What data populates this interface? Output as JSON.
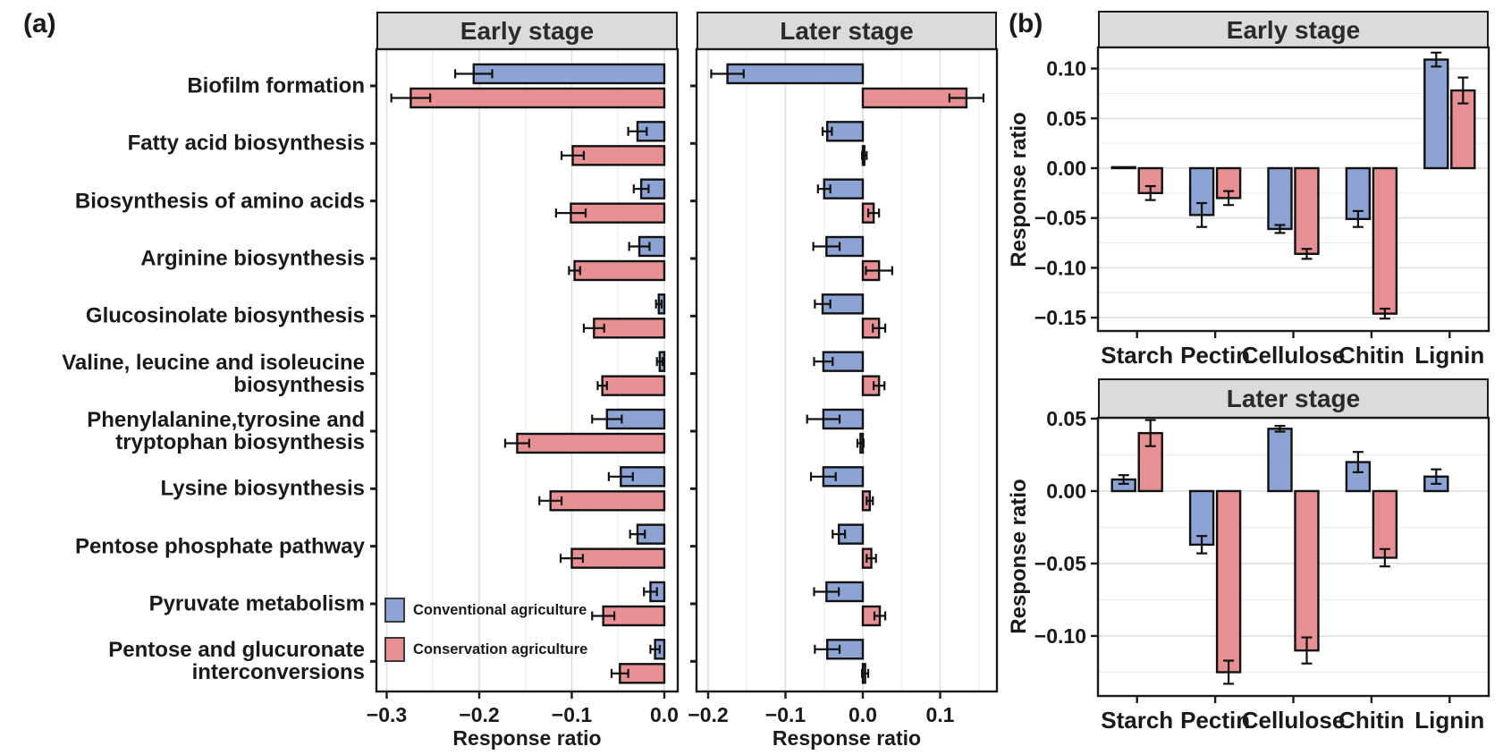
{
  "figure": {
    "panel_a_label": "(a)",
    "panel_b_label": "(b)",
    "colors": {
      "conventional": "#8CA3D4",
      "conservation": "#E69093",
      "bar_outline": "#111111",
      "header_bg": "#DBDBDB",
      "grid_major": "#E2E2E2",
      "grid_minor": "#EDEDED",
      "text": "#1a1a1a"
    },
    "legend": {
      "items": [
        {
          "label": "Conventional agriculture",
          "color_key": "conventional"
        },
        {
          "label": "Conservation agriculture",
          "color_key": "conservation"
        }
      ]
    }
  },
  "chart_data": [
    {
      "id": "a-early",
      "type": "bar",
      "orientation": "horizontal",
      "title": "Early stage",
      "xlabel": "Response ratio",
      "xlim": [
        -0.3111,
        0.0145
      ],
      "xticks": [
        -0.3,
        -0.2,
        -0.1,
        0.0
      ],
      "xtick_labels": [
        "−0.3",
        "−0.2",
        "−0.1",
        "0.0"
      ],
      "grid": true,
      "legend_position": "inside bottom-left",
      "categories": [
        "Biofilm formation",
        "Fatty acid biosynthesis",
        "Biosynthesis of amino acids",
        "Arginine biosynthesis",
        "Glucosinolate biosynthesis",
        "Valine, leucine and isoleucine\nbiosynthesis",
        "Phenylalanine,tyrosine and\ntryptophan biosynthesis",
        "Lysine biosynthesis",
        "Pentose phosphate pathway",
        "Pyruvate metabolism",
        "Pentose and glucuronate\ninterconversions"
      ],
      "series": [
        {
          "name": "Conventional agriculture",
          "color_key": "conventional",
          "values": [
            -0.206,
            -0.029,
            -0.025,
            -0.027,
            -0.006,
            -0.005,
            -0.062,
            -0.047,
            -0.029,
            -0.015,
            -0.01
          ],
          "errors": [
            0.02,
            0.01,
            0.008,
            0.011,
            0.003,
            0.003,
            0.016,
            0.013,
            0.008,
            0.007,
            0.005
          ]
        },
        {
          "name": "Conservation agriculture",
          "color_key": "conservation",
          "values": [
            -0.274,
            -0.099,
            -0.101,
            -0.097,
            -0.076,
            -0.067,
            -0.159,
            -0.123,
            -0.1,
            -0.066,
            -0.048
          ],
          "errors": [
            0.021,
            0.012,
            0.016,
            0.006,
            0.011,
            0.005,
            0.013,
            0.012,
            0.012,
            0.012,
            0.009
          ]
        }
      ]
    },
    {
      "id": "a-later",
      "type": "bar",
      "orientation": "horizontal",
      "title": "Later stage",
      "xlabel": "Response ratio",
      "xlim": [
        -0.215,
        0.1734
      ],
      "xticks": [
        -0.2,
        -0.1,
        0.0,
        0.1
      ],
      "xtick_labels": [
        "−0.2",
        "−0.1",
        "0.0",
        "0.1"
      ],
      "grid": true,
      "categories": [
        "Biofilm formation",
        "Fatty acid biosynthesis",
        "Biosynthesis of amino acids",
        "Arginine biosynthesis",
        "Glucosinolate biosynthesis",
        "Valine, leucine and isoleucine\nbiosynthesis",
        "Phenylalanine,tyrosine and\ntryptophan biosynthesis",
        "Lysine biosynthesis",
        "Pentose phosphate pathway",
        "Pyruvate metabolism",
        "Pentose and glucuronate\ninterconversions"
      ],
      "series": [
        {
          "name": "Conventional agriculture",
          "color_key": "conventional",
          "values": [
            -0.175,
            -0.046,
            -0.05,
            -0.047,
            -0.052,
            -0.051,
            -0.051,
            -0.051,
            -0.031,
            -0.047,
            -0.046
          ],
          "errors": [
            0.021,
            0.006,
            0.008,
            0.017,
            0.01,
            0.012,
            0.021,
            0.016,
            0.008,
            0.016,
            0.016
          ]
        },
        {
          "name": "Conservation agriculture",
          "color_key": "conservation",
          "values": [
            0.134,
            0.002,
            0.014,
            0.021,
            0.021,
            0.021,
            -0.003,
            0.009,
            0.011,
            0.022,
            0.003
          ],
          "errors": [
            0.022,
            0.003,
            0.007,
            0.017,
            0.008,
            0.007,
            0.004,
            0.004,
            0.006,
            0.007,
            0.004
          ]
        }
      ]
    },
    {
      "id": "b-early",
      "type": "bar",
      "orientation": "vertical",
      "title": "Early stage",
      "ylabel": "Response ratio",
      "ylim": [
        -0.1634,
        0.1212
      ],
      "yticks": [
        0.1,
        0.05,
        0.0,
        -0.05,
        -0.1,
        -0.15
      ],
      "ytick_labels": [
        "0.10",
        "0.05",
        "0.00",
        "−0.05",
        "−0.10",
        "−0.15"
      ],
      "grid": true,
      "categories": [
        "Starch",
        "Pectin",
        "Cellulose",
        "Chitin",
        "Lignin"
      ],
      "series": [
        {
          "name": "Conventional agriculture",
          "color_key": "conventional",
          "values": [
            0.001,
            -0.047,
            -0.061,
            -0.051,
            0.109
          ],
          "errors": [
            0,
            0.012,
            0.004,
            0.008,
            0.007
          ]
        },
        {
          "name": "Conservation agriculture",
          "color_key": "conservation",
          "values": [
            -0.025,
            -0.03,
            -0.086,
            -0.146,
            0.078
          ],
          "errors": [
            0.007,
            0.007,
            0.005,
            0.005,
            0.013
          ]
        }
      ]
    },
    {
      "id": "b-later",
      "type": "bar",
      "orientation": "vertical",
      "title": "Later stage",
      "ylabel": "Response ratio",
      "ylim": [
        -0.1414,
        0.0506
      ],
      "yticks": [
        0.05,
        0.0,
        -0.05,
        -0.1
      ],
      "ytick_labels": [
        "0.05",
        "0.00",
        "−0.05",
        "−0.10"
      ],
      "grid": true,
      "categories": [
        "Starch",
        "Pectin",
        "Cellulose",
        "Chitin",
        "Lignin"
      ],
      "series": [
        {
          "name": "Conventional agriculture",
          "color_key": "conventional",
          "values": [
            0.008,
            -0.037,
            0.043,
            0.02,
            0.01
          ],
          "errors": [
            0.003,
            0.006,
            0.002,
            0.007,
            0.005
          ]
        },
        {
          "name": "Conservation agriculture",
          "color_key": "conservation",
          "values": [
            0.04,
            -0.125,
            -0.11,
            -0.046,
            null
          ],
          "errors": [
            0.009,
            0.008,
            0.009,
            0.006,
            null
          ]
        }
      ]
    }
  ]
}
